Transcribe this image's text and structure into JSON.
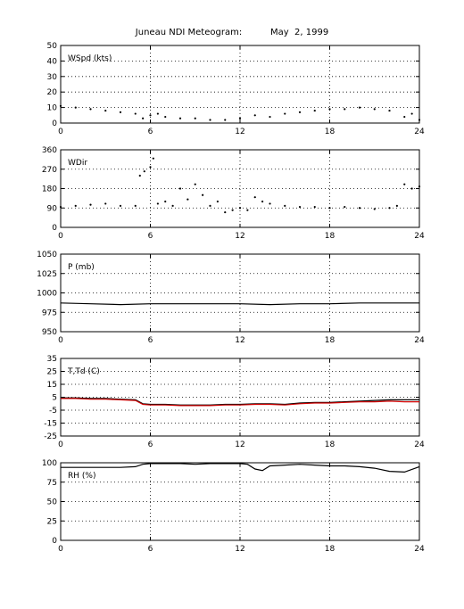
{
  "title": {
    "station": "Juneau NDI Meteogram:",
    "date": "May  2, 1999"
  },
  "chart_data": [
    {
      "type": "scatter",
      "label": "WSpd (kts)",
      "xlim": [
        0,
        24
      ],
      "xticks": [
        0,
        6,
        12,
        18,
        24
      ],
      "ylim": [
        0,
        50
      ],
      "yticks": [
        0,
        10,
        20,
        30,
        40,
        50
      ],
      "grid": true,
      "series": [
        {
          "color": "#000000",
          "x": [
            0,
            1,
            2,
            3,
            4,
            5,
            5.5,
            6,
            6.5,
            7,
            8,
            9,
            10,
            11,
            12,
            13,
            14,
            15,
            16,
            17,
            18,
            19,
            20,
            21,
            22,
            23,
            23.5,
            24
          ],
          "y": [
            11,
            10,
            9,
            8,
            7,
            6,
            3,
            5,
            6,
            4,
            3,
            3,
            2,
            2,
            3,
            5,
            4,
            6,
            7,
            8,
            9,
            9,
            10,
            9,
            8,
            4,
            6,
            2
          ]
        }
      ]
    },
    {
      "type": "scatter",
      "label": "WDir",
      "xlim": [
        0,
        24
      ],
      "xticks": [
        0,
        6,
        12,
        18,
        24
      ],
      "ylim": [
        0,
        360
      ],
      "yticks": [
        0,
        90,
        180,
        270,
        360
      ],
      "grid": true,
      "series": [
        {
          "color": "#000000",
          "x": [
            0,
            1,
            2,
            3,
            4,
            5,
            5.3,
            5.6,
            6,
            6.2,
            6.5,
            7,
            7.5,
            8,
            8.5,
            9,
            9.5,
            10,
            10.5,
            11,
            11.5,
            12,
            12.5,
            13,
            13.5,
            14,
            15,
            16,
            17,
            18,
            19,
            20,
            21,
            22,
            22.5,
            23,
            23.5,
            24
          ],
          "y": [
            95,
            100,
            105,
            110,
            100,
            100,
            240,
            260,
            280,
            320,
            110,
            120,
            100,
            180,
            130,
            200,
            150,
            100,
            120,
            70,
            80,
            90,
            80,
            140,
            120,
            110,
            100,
            95,
            95,
            90,
            95,
            90,
            85,
            90,
            100,
            200,
            180,
            190
          ]
        }
      ]
    },
    {
      "type": "line",
      "label": "P (mb)",
      "xlim": [
        0,
        24
      ],
      "xticks": [
        0,
        6,
        12,
        18,
        24
      ],
      "ylim": [
        950,
        1050
      ],
      "yticks": [
        950,
        975,
        1000,
        1025,
        1050
      ],
      "grid": true,
      "series": [
        {
          "color": "#000000",
          "x": [
            0,
            2,
            4,
            6,
            8,
            10,
            12,
            14,
            16,
            18,
            20,
            22,
            24
          ],
          "y": [
            987,
            986,
            985,
            986,
            986,
            986,
            986,
            985,
            986,
            986,
            987,
            987,
            987
          ]
        }
      ]
    },
    {
      "type": "line",
      "label": "T,Td (C)",
      "xlim": [
        0,
        24
      ],
      "xticks": [
        0,
        6,
        12,
        18,
        24
      ],
      "ylim": [
        -25,
        35
      ],
      "yticks": [
        -25,
        -15,
        -5,
        5,
        15,
        25,
        35
      ],
      "grid": true,
      "series": [
        {
          "color": "#000000",
          "x": [
            0,
            1,
            2,
            3,
            4,
            5,
            5.5,
            6,
            7,
            8,
            9,
            10,
            11,
            12,
            13,
            14,
            15,
            16,
            17,
            18,
            19,
            20,
            21,
            22,
            23,
            24
          ],
          "y": [
            4.5,
            4.5,
            4,
            4,
            3.5,
            3,
            0,
            -0.5,
            -0.5,
            -1,
            -1,
            -1,
            -0.5,
            -0.5,
            0,
            0,
            -0.5,
            0.5,
            1,
            1,
            1.5,
            2,
            2.5,
            3,
            3,
            3
          ]
        },
        {
          "color": "#d00000",
          "x": [
            0,
            1,
            2,
            3,
            4,
            5,
            5.5,
            6,
            7,
            8,
            9,
            10,
            11,
            12,
            13,
            14,
            15,
            16,
            17,
            18,
            19,
            20,
            21,
            22,
            23,
            24
          ],
          "y": [
            4,
            4,
            3.5,
            3.5,
            3,
            2.5,
            -0.5,
            -1,
            -1,
            -1.5,
            -1.5,
            -1.5,
            -1,
            -1,
            -0.5,
            -0.5,
            -1,
            0,
            0.5,
            0.5,
            1,
            1.5,
            1.5,
            2,
            1.5,
            1.5
          ]
        }
      ]
    },
    {
      "type": "line",
      "label": "RH (%)",
      "xlim": [
        0,
        24
      ],
      "xticks": [
        0,
        6,
        12,
        18,
        24
      ],
      "ylim": [
        0,
        100
      ],
      "yticks": [
        0,
        25,
        50,
        75,
        100
      ],
      "grid": true,
      "series": [
        {
          "color": "#000000",
          "x": [
            0,
            2,
            4,
            5,
            5.5,
            6,
            7,
            8,
            9,
            10,
            11,
            12,
            12.5,
            13,
            13.5,
            14,
            15,
            16,
            17,
            18,
            19,
            20,
            21,
            22,
            23,
            24
          ],
          "y": [
            94,
            94,
            94,
            95,
            98,
            99,
            99,
            99,
            98,
            99,
            99,
            99,
            98,
            92,
            90,
            96,
            97,
            98,
            97,
            96,
            96,
            95,
            93,
            89,
            88,
            95
          ]
        }
      ]
    }
  ]
}
